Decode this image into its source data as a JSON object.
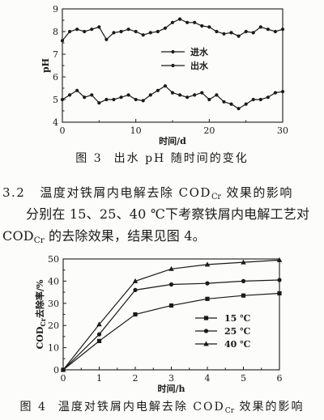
{
  "chart_data": [
    {
      "type": "line",
      "xlabel": "时间/d",
      "ylabel": "pH",
      "xlim": [
        0,
        30
      ],
      "ylim": [
        4,
        9
      ],
      "xticks": [
        0,
        10,
        20,
        30
      ],
      "yticks": [
        4,
        5,
        6,
        7,
        8,
        9
      ],
      "grid": false,
      "legend": "center",
      "x": [
        0,
        1,
        2,
        3,
        4,
        5,
        6,
        7,
        8,
        9,
        10,
        11,
        12,
        13,
        14,
        15,
        16,
        17,
        18,
        19,
        20,
        21,
        22,
        23,
        24,
        25,
        26,
        27,
        28,
        29,
        30
      ],
      "series": [
        {
          "name": "进水",
          "marker": "circle",
          "values": [
            7.6,
            8.0,
            8.1,
            8.0,
            8.1,
            8.2,
            7.65,
            7.95,
            8.0,
            8.1,
            8.0,
            7.85,
            7.95,
            8.0,
            8.15,
            8.4,
            8.55,
            8.4,
            8.4,
            8.25,
            8.2,
            8.0,
            7.9,
            7.95,
            7.8,
            8.0,
            7.95,
            8.2,
            8.1,
            8.0,
            8.1
          ]
        },
        {
          "name": "出水",
          "marker": "circle",
          "values": [
            5.0,
            5.2,
            5.4,
            5.1,
            5.2,
            4.85,
            5.0,
            5.0,
            5.1,
            5.2,
            5.0,
            4.95,
            5.2,
            5.4,
            5.6,
            5.3,
            5.2,
            5.1,
            5.2,
            5.3,
            5.0,
            5.2,
            4.9,
            4.8,
            4.6,
            4.8,
            5.0,
            5.0,
            5.1,
            5.3,
            5.35
          ]
        }
      ]
    },
    {
      "type": "line",
      "xlabel": "时间/h",
      "ylabel": "COD",
      "ylabel_sub": "Cr",
      "ylabel_suffix": "去除率/%",
      "xlim": [
        0,
        6
      ],
      "ylim": [
        0,
        50
      ],
      "xticks": [
        0,
        1,
        2,
        3,
        4,
        5,
        6
      ],
      "yticks": [
        0,
        10,
        20,
        30,
        40,
        50
      ],
      "grid": false,
      "legend": "center-right",
      "x": [
        0,
        1,
        2,
        3,
        4,
        5,
        6
      ],
      "series": [
        {
          "name": "15 ℃",
          "marker": "square",
          "values": [
            0,
            13,
            25,
            29,
            32,
            33.5,
            34.5
          ]
        },
        {
          "name": "25 ℃",
          "marker": "circle",
          "values": [
            0,
            16,
            36,
            38.5,
            39,
            40,
            40.5
          ]
        },
        {
          "name": "40 ℃",
          "marker": "triangle",
          "values": [
            0,
            20.5,
            40,
            45.5,
            47.5,
            48.5,
            49.5
          ]
        }
      ]
    }
  ],
  "figures": [
    {
      "number": "图 3",
      "caption": "出水 pH 随时间的变化"
    },
    {
      "number": "图 4",
      "caption": "温度对铁屑内电解去除 COD",
      "caption_sub": "Cr",
      "caption_suffix": " 效果的影响"
    }
  ],
  "section": {
    "number": "3.2",
    "title": "温度对铁屑内电解去除 COD",
    "title_sub": "Cr",
    "title_suffix": " 效果的影响"
  },
  "paragraph": {
    "text": "分别在 15、25、40 ℃下考察铁屑内电解工艺对",
    "text2": "COD",
    "text2_sub": "Cr",
    "text2_suffix": " 的去除效果，结果见图 4。"
  }
}
